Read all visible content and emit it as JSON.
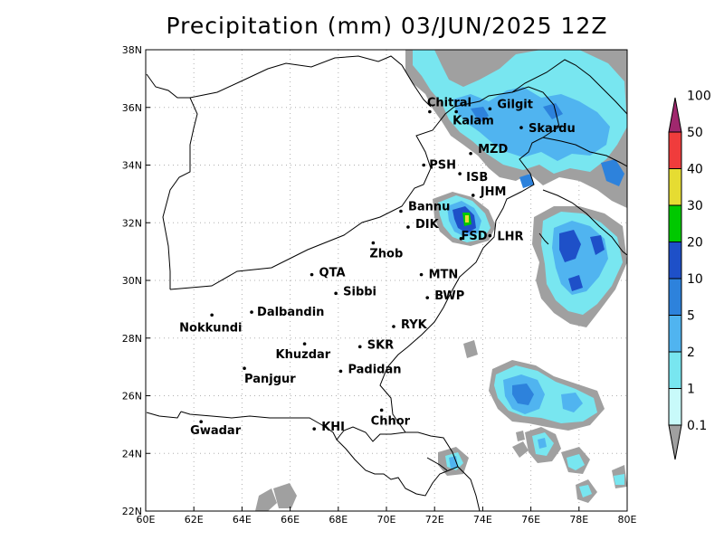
{
  "title": "Precipitation (mm) 03/JUN/2025 12Z",
  "x_ticks": [
    "60E",
    "62E",
    "64E",
    "66E",
    "68E",
    "70E",
    "72E",
    "74E",
    "76E",
    "78E",
    "80E"
  ],
  "y_ticks": [
    "22N",
    "24N",
    "26N",
    "28N",
    "30N",
    "32N",
    "34N",
    "36N",
    "38N"
  ],
  "cities": [
    {
      "name": "Chitral",
      "lon": 71.8,
      "lat": 35.85
    },
    {
      "name": "Gilgit",
      "lon": 74.3,
      "lat": 35.95
    },
    {
      "name": "Kalam",
      "lon": 72.9,
      "lat": 35.85
    },
    {
      "name": "Skardu",
      "lon": 75.6,
      "lat": 35.3
    },
    {
      "name": "MZD",
      "lon": 73.5,
      "lat": 34.4
    },
    {
      "name": "PSH",
      "lon": 71.55,
      "lat": 34.0
    },
    {
      "name": "ISB",
      "lon": 73.05,
      "lat": 33.7
    },
    {
      "name": "JHM",
      "lon": 73.6,
      "lat": 32.95
    },
    {
      "name": "Bannu",
      "lon": 70.6,
      "lat": 32.4
    },
    {
      "name": "DIK",
      "lon": 70.9,
      "lat": 31.85
    },
    {
      "name": "FSD",
      "lon": 73.1,
      "lat": 31.45
    },
    {
      "name": "LHR",
      "lon": 74.3,
      "lat": 31.55
    },
    {
      "name": "Zhob",
      "lon": 69.45,
      "lat": 31.3
    },
    {
      "name": "QTA",
      "lon": 66.9,
      "lat": 30.2
    },
    {
      "name": "MTN",
      "lon": 71.45,
      "lat": 30.2
    },
    {
      "name": "Sibbi",
      "lon": 67.9,
      "lat": 29.55
    },
    {
      "name": "BWP",
      "lon": 71.7,
      "lat": 29.4
    },
    {
      "name": "Dalbandin",
      "lon": 64.4,
      "lat": 28.9
    },
    {
      "name": "Nokkundi",
      "lon": 62.75,
      "lat": 28.8
    },
    {
      "name": "RYK",
      "lon": 70.3,
      "lat": 28.4
    },
    {
      "name": "Khuzdar",
      "lon": 66.6,
      "lat": 27.8
    },
    {
      "name": "SKR",
      "lon": 68.9,
      "lat": 27.7
    },
    {
      "name": "Panjgur",
      "lon": 64.1,
      "lat": 26.95
    },
    {
      "name": "Padidan",
      "lon": 68.1,
      "lat": 26.85
    },
    {
      "name": "Chhor",
      "lon": 69.8,
      "lat": 25.5
    },
    {
      "name": "Gwadar",
      "lon": 62.3,
      "lat": 25.1
    },
    {
      "name": "KHI",
      "lon": 67.0,
      "lat": 24.85
    }
  ],
  "colorbar": {
    "levels": [
      "0.1",
      "1",
      "2",
      "5",
      "10",
      "20",
      "30",
      "40",
      "50",
      "100"
    ],
    "colors": [
      "#a0a0a0",
      "#c8fafa",
      "#78e6f0",
      "#50b4f0",
      "#2d82dc",
      "#1e50c8",
      "#00c800",
      "#e6dc32",
      "#f03c3c",
      "#a0286e"
    ]
  },
  "precip_colors": {
    "gray": "#a0a0a0",
    "pale": "#c8fafa",
    "light": "#78e6f0",
    "mid": "#50b4f0",
    "dark": "#2d82dc",
    "green": "#00c800",
    "yellow": "#e6dc32"
  }
}
